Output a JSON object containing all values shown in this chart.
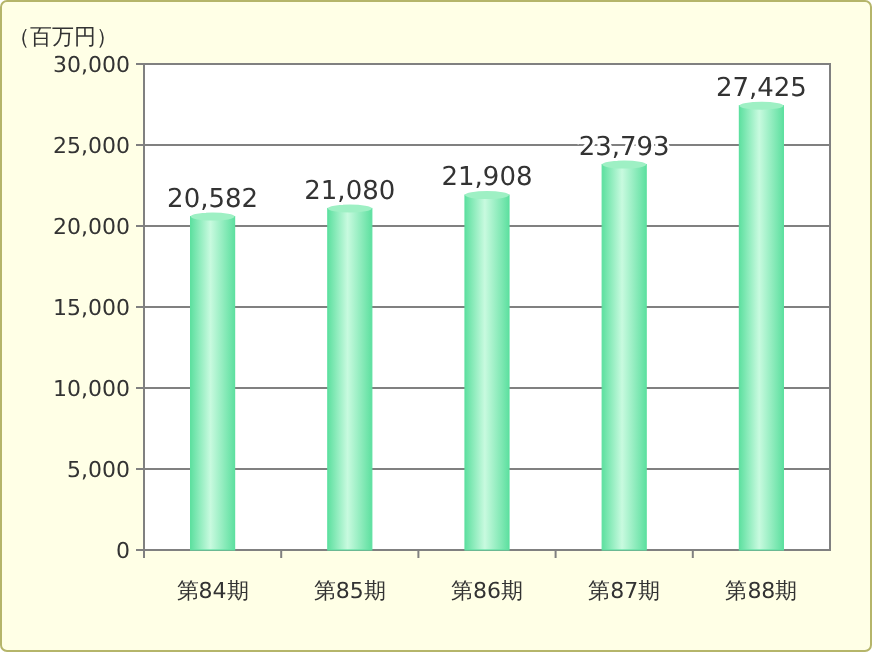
{
  "chart_data": {
    "type": "bar",
    "ylabel": "（百万円）",
    "categories": [
      "第84期",
      "第85期",
      "第86期",
      "第87期",
      "第88期"
    ],
    "values": [
      20582,
      21080,
      21908,
      23793,
      27425
    ],
    "value_labels": [
      "20,582",
      "21,080",
      "21,908",
      "23,793",
      "27,425"
    ],
    "color": "#5ee0a0",
    "ylim": [
      0,
      30000
    ],
    "yticks": [
      {
        "value": 0,
        "label": "0"
      },
      {
        "value": 5000,
        "label": "5,000"
      },
      {
        "value": 10000,
        "label": "10,000"
      },
      {
        "value": 15000,
        "label": "15,000"
      },
      {
        "value": 20000,
        "label": "20,000"
      },
      {
        "value": 25000,
        "label": "25,000"
      },
      {
        "value": 30000,
        "label": "30,000"
      }
    ],
    "grid": "y"
  }
}
